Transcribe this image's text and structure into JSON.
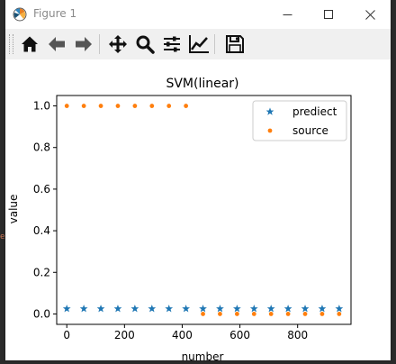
{
  "window": {
    "title": "Figure 1"
  },
  "toolbar": {
    "tools": [
      "home-icon",
      "back-arrow-icon",
      "forward-arrow-icon",
      "pan-icon",
      "zoom-icon",
      "subplots-icon",
      "edit-axis-icon",
      "save-icon"
    ]
  },
  "colors": {
    "predict": "#1f77b4",
    "source": "#ff7f0e"
  },
  "chart_data": {
    "type": "scatter",
    "title": "SVM(linear)",
    "xlabel": "number",
    "ylabel": "value",
    "xlim": [
      -35,
      985
    ],
    "ylim": [
      -0.05,
      1.05
    ],
    "xticks": [
      "0",
      "200",
      "400",
      "600",
      "800"
    ],
    "yticks": [
      "0.0",
      "0.2",
      "0.4",
      "0.6",
      "0.8",
      "1.0"
    ],
    "grid": false,
    "legend_position": "top-right",
    "series": [
      {
        "name": "prediect",
        "marker": "star",
        "x": [
          0,
          59,
          118,
          177,
          236,
          295,
          354,
          413,
          472,
          531,
          590,
          649,
          708,
          767,
          826,
          885,
          944
        ],
        "y": [
          0.025,
          0.025,
          0.025,
          0.025,
          0.025,
          0.025,
          0.025,
          0.025,
          0.025,
          0.025,
          0.025,
          0.025,
          0.025,
          0.025,
          0.025,
          0.025,
          0.025
        ]
      },
      {
        "name": "source",
        "marker": "circle",
        "x": [
          0,
          59,
          118,
          177,
          236,
          295,
          354,
          413,
          472,
          531,
          590,
          649,
          708,
          767,
          826,
          885,
          944
        ],
        "y": [
          1,
          1,
          1,
          1,
          1,
          1,
          1,
          1,
          0,
          0,
          0,
          0,
          0,
          0,
          0,
          0,
          0
        ]
      }
    ]
  }
}
